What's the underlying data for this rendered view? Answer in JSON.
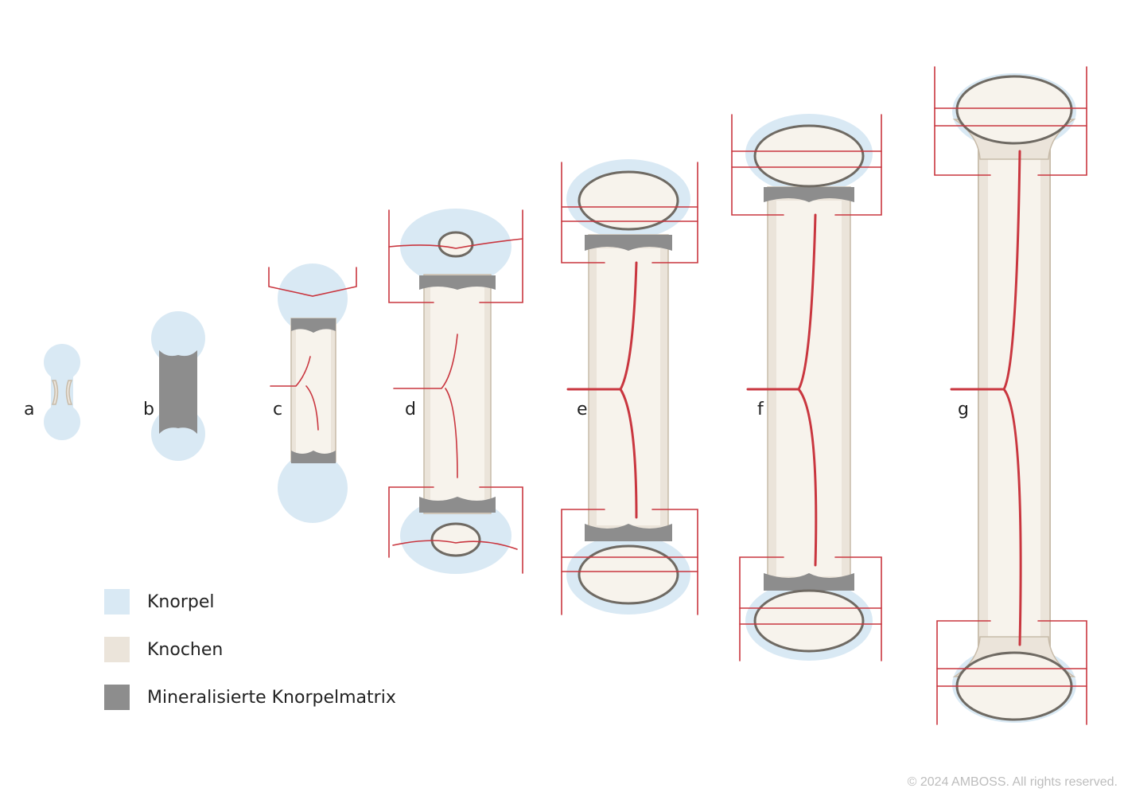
{
  "colors": {
    "cartilage": "#d9e9f4",
    "bone": "#ebe4da",
    "bone_outline": "#c7bba9",
    "mineralized": "#8d8d8d",
    "vessel": "#c9363f",
    "marrow": "#f7f3ec"
  },
  "stages": [
    {
      "id": "a",
      "label": "a"
    },
    {
      "id": "b",
      "label": "b"
    },
    {
      "id": "c",
      "label": "c"
    },
    {
      "id": "d",
      "label": "d"
    },
    {
      "id": "e",
      "label": "e"
    },
    {
      "id": "f",
      "label": "f"
    },
    {
      "id": "g",
      "label": "g"
    }
  ],
  "legend": [
    {
      "key": "cartilage",
      "label": "Knorpel"
    },
    {
      "key": "bone",
      "label": "Knochen"
    },
    {
      "key": "mineralized",
      "label": "Mineralisierte Knorpelmatrix"
    }
  ],
  "copyright": "© 2024 AMBOSS. All rights reserved."
}
